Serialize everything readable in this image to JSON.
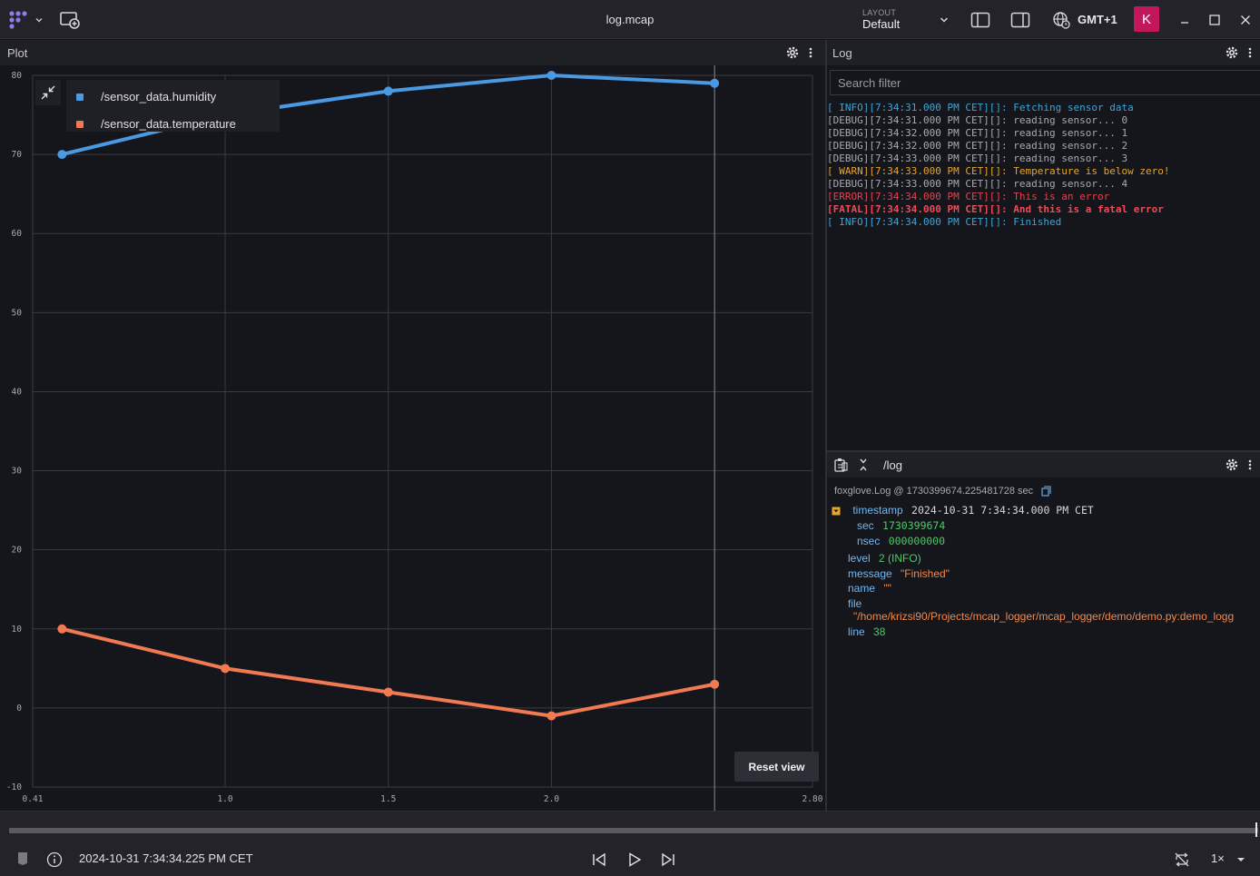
{
  "app": {
    "title": "log.mcap",
    "layout_label": "LAYOUT",
    "layout_value": "Default",
    "timezone": "GMT+1",
    "avatar_initial": "K"
  },
  "plot": {
    "header": "Plot",
    "reset_label": "Reset view",
    "legend": [
      {
        "name": "/sensor_data.humidity",
        "color": "#4a9ae3"
      },
      {
        "name": "/sensor_data.temperature",
        "color": "#f27a52"
      }
    ]
  },
  "chart_data": {
    "type": "line",
    "xlim": [
      0.41,
      2.8
    ],
    "ylim": [
      -10,
      80
    ],
    "x_ticks": [
      "0.41",
      "1.0",
      "1.5",
      "2.0",
      "2.80"
    ],
    "y_ticks": [
      "80",
      "70",
      "60",
      "50",
      "40",
      "30",
      "20",
      "10",
      "0",
      "-10"
    ],
    "cursor_x": 2.5,
    "grid": true,
    "series": [
      {
        "name": "/sensor_data.humidity",
        "color": "#4a9ae3",
        "x": [
          0.5,
          1.0,
          1.5,
          2.0,
          2.5
        ],
        "y": [
          70,
          75,
          78,
          80,
          79
        ]
      },
      {
        "name": "/sensor_data.temperature",
        "color": "#f27a52",
        "x": [
          0.5,
          1.0,
          1.5,
          2.0,
          2.5
        ],
        "y": [
          10,
          5,
          2,
          -1,
          3
        ]
      }
    ]
  },
  "log": {
    "header": "Log",
    "search_placeholder": "Search filter",
    "lines": [
      {
        "level": "info",
        "text": "[ INFO][7:34:31.000 PM CET][]: Fetching sensor data"
      },
      {
        "level": "debug",
        "text": "[DEBUG][7:34:31.000 PM CET][]: reading sensor... 0"
      },
      {
        "level": "debug",
        "text": "[DEBUG][7:34:32.000 PM CET][]: reading sensor... 1"
      },
      {
        "level": "debug",
        "text": "[DEBUG][7:34:32.000 PM CET][]: reading sensor... 2"
      },
      {
        "level": "debug",
        "text": "[DEBUG][7:34:33.000 PM CET][]: reading sensor... 3"
      },
      {
        "level": "warn",
        "text": "[ WARN][7:34:33.000 PM CET][]: Temperature is below zero!"
      },
      {
        "level": "debug",
        "text": "[DEBUG][7:34:33.000 PM CET][]: reading sensor... 4"
      },
      {
        "level": "error",
        "text": "[ERROR][7:34:34.000 PM CET][]: This is an error"
      },
      {
        "level": "fatal",
        "text": "[FATAL][7:34:34.000 PM CET][]: And this is a fatal error"
      },
      {
        "level": "info",
        "text": "[ INFO][7:34:34.000 PM CET][]: Finished"
      }
    ]
  },
  "raw": {
    "topic": "/log",
    "schema_line": "foxglove.Log @ 1730399674.225481728 sec",
    "timestamp_key": "timestamp",
    "timestamp_val": "2024-10-31 7:34:34.000 PM CET",
    "sec_key": "sec",
    "sec_val": "1730399674",
    "nsec_key": "nsec",
    "nsec_val": "000000000",
    "level_key": "level",
    "level_val": "2 (INFO)",
    "message_key": "message",
    "message_val": "\"Finished\"",
    "name_key": "name",
    "name_val": "\"\"",
    "file_key": "file",
    "file_val": "\"/home/krizsi90/Projects/mcap_logger/mcap_logger/demo/demo.py:demo_logg",
    "line_key": "line",
    "line_val": "38"
  },
  "playback": {
    "time": "2024-10-31 7:34:34.225 PM CET",
    "speed": "1×",
    "progress": 1.0
  }
}
